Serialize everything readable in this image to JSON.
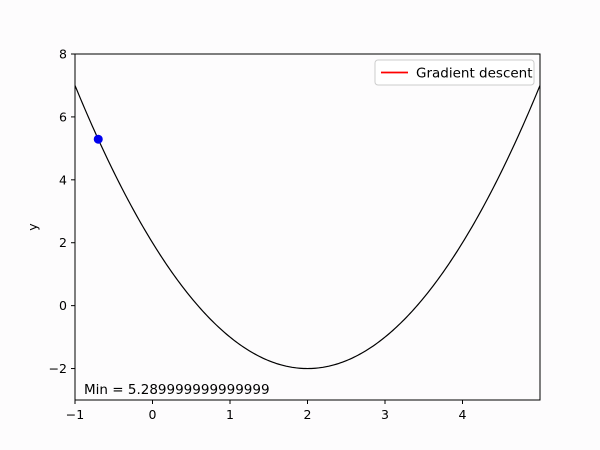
{
  "chart_data": {
    "type": "line",
    "title": "",
    "xlabel": "",
    "ylabel": "y",
    "xlim": [
      -1,
      5
    ],
    "ylim": [
      -3,
      8
    ],
    "xticks": [
      -1,
      0,
      1,
      2,
      3,
      4
    ],
    "yticks": [
      -2,
      0,
      2,
      4,
      6,
      8
    ],
    "xtick_labels": [
      "−1",
      "0",
      "1",
      "2",
      "3",
      "4"
    ],
    "ytick_labels": [
      "−2",
      "0",
      "2",
      "4",
      "6",
      "8"
    ],
    "curve": {
      "function": "(x-2)^2 - 2",
      "color": "#000000",
      "x_range": [
        -1,
        5
      ]
    },
    "series": [
      {
        "name": "Gradient descent",
        "color": "#ff0000",
        "x": [],
        "y": []
      }
    ],
    "current_point": {
      "x": -0.7,
      "y": 5.29,
      "color": "#0000ee"
    },
    "annotation": "Min = 5.289999999999999",
    "legend": {
      "position": "top-right",
      "entries": [
        "Gradient descent"
      ]
    },
    "grid": false
  }
}
